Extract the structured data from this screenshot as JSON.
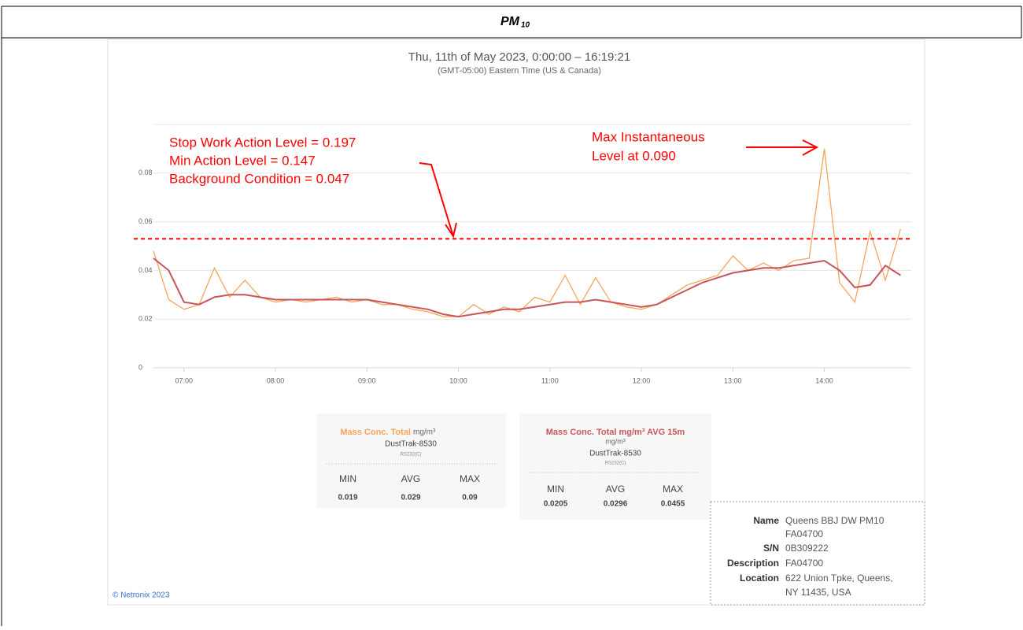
{
  "header": {
    "title": "PM",
    "subscript": "10"
  },
  "chart_data": {
    "type": "line",
    "title": "Thu, 11th of May 2023, 0:00:00 – 16:19:21",
    "subtitle": "(GMT-05:00) Eastern Time (US & Canada)",
    "x": [
      "06:40",
      "06:50",
      "07:00",
      "07:10",
      "07:20",
      "07:30",
      "07:40",
      "07:50",
      "08:00",
      "08:10",
      "08:20",
      "08:30",
      "08:40",
      "08:50",
      "09:00",
      "09:10",
      "09:20",
      "09:30",
      "09:40",
      "09:50",
      "10:00",
      "10:10",
      "10:20",
      "10:30",
      "10:40",
      "10:50",
      "11:00",
      "11:10",
      "11:20",
      "11:30",
      "11:40",
      "11:50",
      "12:00",
      "12:10",
      "12:20",
      "12:30",
      "12:40",
      "12:50",
      "13:00",
      "13:10",
      "13:20",
      "13:30",
      "13:40",
      "13:50",
      "14:00",
      "14:10",
      "14:20",
      "14:30",
      "14:40",
      "14:50"
    ],
    "series": [
      {
        "name": "Mass Conc. Total",
        "unit": "mg/m³",
        "color": "#f5a55a",
        "values": [
          0.048,
          0.028,
          0.024,
          0.026,
          0.041,
          0.029,
          0.036,
          0.029,
          0.027,
          0.028,
          0.027,
          0.028,
          0.029,
          0.027,
          0.028,
          0.026,
          0.026,
          0.024,
          0.023,
          0.021,
          0.021,
          0.026,
          0.022,
          0.025,
          0.023,
          0.029,
          0.027,
          0.038,
          0.026,
          0.037,
          0.027,
          0.025,
          0.024,
          0.026,
          0.03,
          0.034,
          0.036,
          0.038,
          0.046,
          0.04,
          0.043,
          0.04,
          0.044,
          0.045,
          0.09,
          0.035,
          0.027,
          0.056,
          0.036,
          0.057
        ],
        "stats": {
          "min": 0.019,
          "avg": 0.029,
          "max": 0.09
        }
      },
      {
        "name": "Mass Conc. Total mg/m³ AVG 15m",
        "unit": "mg/m³",
        "color": "#c8555a",
        "values": [
          0.045,
          0.04,
          0.027,
          0.026,
          0.029,
          0.03,
          0.03,
          0.029,
          0.028,
          0.028,
          0.028,
          0.028,
          0.028,
          0.028,
          0.028,
          0.027,
          0.026,
          0.025,
          0.024,
          0.022,
          0.021,
          0.022,
          0.023,
          0.024,
          0.024,
          0.025,
          0.026,
          0.027,
          0.027,
          0.028,
          0.027,
          0.026,
          0.025,
          0.026,
          0.029,
          0.032,
          0.035,
          0.037,
          0.039,
          0.04,
          0.041,
          0.041,
          0.042,
          0.043,
          0.044,
          0.04,
          0.033,
          0.034,
          0.042,
          0.038
        ],
        "stats": {
          "min": 0.0205,
          "avg": 0.0296,
          "max": 0.0455
        }
      }
    ],
    "device": "DustTrak-8530",
    "port": "RS232(C)",
    "stat_labels": [
      "MIN",
      "AVG",
      "MAX"
    ],
    "xlim": [
      "06:40",
      "14:57"
    ],
    "xticks": [
      "07:00",
      "08:00",
      "09:00",
      "10:00",
      "11:00",
      "12:00",
      "13:00",
      "14:00"
    ],
    "ylim": [
      0,
      0.1
    ],
    "yticks": [
      0,
      0.02,
      0.04,
      0.06,
      0.08
    ],
    "grid": true,
    "threshold": {
      "value": 0.053,
      "color": "#ff0000"
    },
    "annotations": [
      "Stop Work Action Level = 0.197",
      "Min Action Level  = 0.147",
      "Background Condition = 0.047",
      "Max Instantaneous",
      "Level at 0.090"
    ]
  },
  "info": [
    [
      "Name",
      "Queens BBJ DW PM10",
      "FA04700"
    ],
    [
      "S/N",
      "0B309222"
    ],
    [
      "Description",
      "FA04700"
    ],
    [
      "Location",
      "622 Union Tpke, Queens,",
      "NY 11435, USA"
    ]
  ],
  "footer": "© Netronix 2023"
}
